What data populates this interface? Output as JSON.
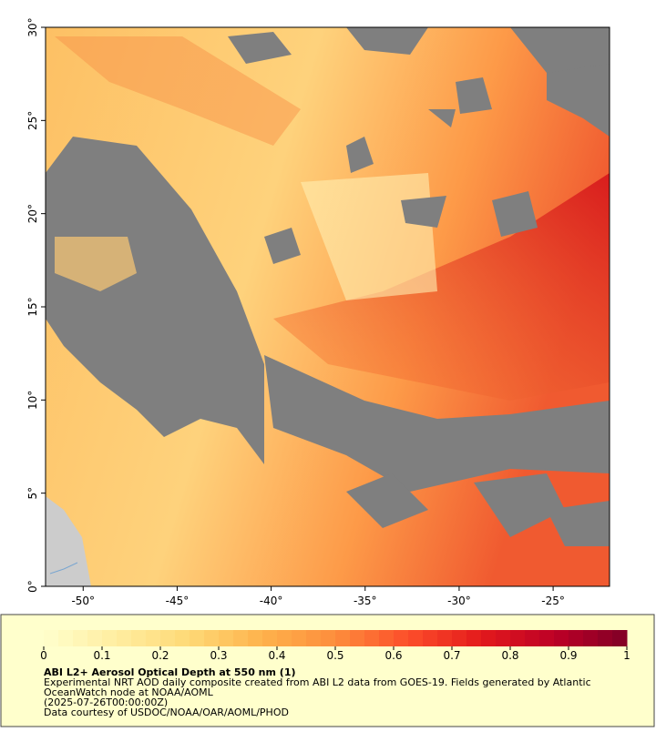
{
  "map": {
    "xlim": [
      -52,
      -22
    ],
    "ylim": [
      0,
      30
    ],
    "xticks": [
      {
        "value": -50,
        "label": "-50°"
      },
      {
        "value": -45,
        "label": "-45°"
      },
      {
        "value": -40,
        "label": "-40°"
      },
      {
        "value": -35,
        "label": "-35°"
      },
      {
        "value": -30,
        "label": "-30°"
      },
      {
        "value": -25,
        "label": "-25°"
      }
    ],
    "yticks": [
      {
        "value": 0,
        "label": "0°"
      },
      {
        "value": 5,
        "label": "5°"
      },
      {
        "value": 10,
        "label": "10°"
      },
      {
        "value": 15,
        "label": "15°"
      },
      {
        "value": 20,
        "label": "20°"
      },
      {
        "value": 25,
        "label": "25°"
      },
      {
        "value": 30,
        "label": "30°"
      }
    ]
  },
  "colorbar": {
    "lim": [
      0,
      1
    ],
    "ticks": [
      0,
      0.1,
      0.2,
      0.3,
      0.4,
      0.5,
      0.6,
      0.7,
      0.8,
      0.9,
      1
    ],
    "colors": [
      "#ffffcc",
      "#ffeda0",
      "#fed976",
      "#feb24c",
      "#fd8d3c",
      "#fc4e2a",
      "#e31a1c",
      "#bd0026",
      "#800026"
    ]
  },
  "caption": {
    "title": "ABI L2+ Aerosol Optical Depth at 550 nm (1)",
    "lines": [
      "Experimental NRT AOD daily composite created from ABI L2 data from GOES-19. Fields generated by Atlantic",
      "OceanWatch node at NOAA/AOML",
      "(2025-07-26T00:00:00Z)",
      "Data courtesy of USDOC/NOAA/OAR/AOML/PHOD"
    ]
  }
}
